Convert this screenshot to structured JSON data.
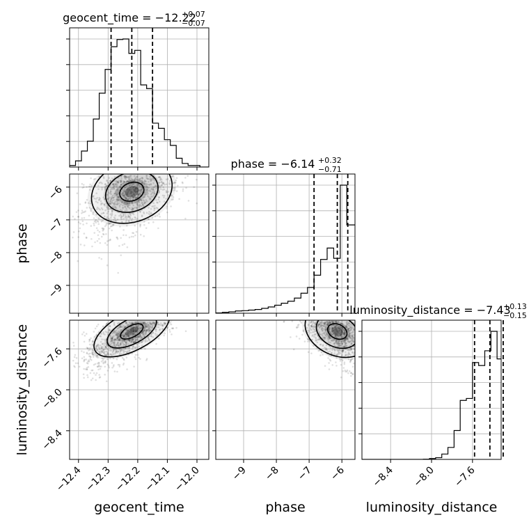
{
  "chart_data": {
    "type": "corner",
    "parameters": [
      "geocent_time",
      "phase",
      "luminosity_distance"
    ],
    "axis_labels": [
      "geocent_time",
      "phase",
      "luminosity_distance"
    ],
    "ranges": {
      "geocent_time": [
        -12.43,
        -11.96
      ],
      "phase": [
        -9.85,
        -5.6
      ],
      "luminosity_distance": [
        -8.68,
        -7.32
      ]
    },
    "ticks": {
      "geocent_time": [
        -12.4,
        -12.3,
        -12.2,
        -12.1,
        -12.0
      ],
      "phase": [
        -9,
        -8,
        -7,
        -6
      ],
      "luminosity_distance": [
        -8.4,
        -8.0,
        -7.6
      ]
    },
    "tick_labels": {
      "geocent_time": [
        "−12.4",
        "−12.3",
        "−12.2",
        "−12.1",
        "−12.0"
      ],
      "phase": [
        "−9",
        "−8",
        "−7",
        "−6"
      ],
      "luminosity_distance": [
        "−8.4",
        "−8.0",
        "−7.6"
      ]
    },
    "titles": [
      {
        "name": "geocent_time",
        "median": "−12.22",
        "plus": "+0.07",
        "minus": "−0.07"
      },
      {
        "name": "phase",
        "median": "−6.14",
        "plus": "+0.32",
        "minus": "−0.71"
      },
      {
        "name": "luminosity_distance",
        "median": "−7.43",
        "plus": "+0.13",
        "minus": "−0.15"
      }
    ],
    "quantiles": {
      "geocent_time": [
        -12.29,
        -12.22,
        -12.15
      ],
      "phase": [
        -6.85,
        -6.14,
        -5.82
      ],
      "luminosity_distance": [
        -7.58,
        -7.43,
        -7.3
      ]
    },
    "histograms": {
      "geocent_time": {
        "edges": [
          -12.43,
          -12.41,
          -12.39,
          -12.37,
          -12.35,
          -12.33,
          -12.31,
          -12.29,
          -12.27,
          -12.25,
          -12.23,
          -12.21,
          -12.19,
          -12.17,
          -12.15,
          -12.13,
          -12.11,
          -12.09,
          -12.07,
          -12.05,
          -12.03,
          -12.01,
          -11.99,
          -11.96
        ],
        "counts": [
          3,
          12,
          31,
          50,
          93,
          143,
          189,
          233,
          247,
          248,
          220,
          226,
          159,
          152,
          85,
          75,
          53,
          42,
          17,
          7,
          3,
          3,
          0
        ]
      },
      "phase": {
        "edges": [
          -9.85,
          -9.65,
          -9.45,
          -9.25,
          -9.05,
          -8.85,
          -8.65,
          -8.45,
          -8.25,
          -8.05,
          -7.85,
          -7.65,
          -7.45,
          -7.25,
          -7.05,
          -6.85,
          -6.65,
          -6.45,
          -6.25,
          -6.05,
          -5.85,
          -5.6
        ],
        "counts": [
          1,
          3,
          5,
          8,
          9,
          11,
          13,
          17,
          22,
          28,
          35,
          42,
          53,
          70,
          90,
          133,
          188,
          228,
          192,
          448,
          309
        ]
      },
      "luminosity_distance": {
        "edges": [
          -8.68,
          -8.62,
          -8.56,
          -8.5,
          -8.44,
          -8.38,
          -8.32,
          -8.26,
          -8.2,
          -8.14,
          -8.08,
          -8.02,
          -7.96,
          -7.9,
          -7.84,
          -7.78,
          -7.72,
          -7.66,
          -7.6,
          -7.54,
          -7.48,
          -7.42,
          -7.36,
          -7.32
        ],
        "counts": [
          0,
          0,
          0,
          0,
          0,
          0,
          0,
          0,
          0,
          0,
          1,
          4,
          8,
          25,
          56,
          135,
          276,
          285,
          453,
          439,
          508,
          599,
          470
        ]
      }
    },
    "scatter_extents": {
      "geocent_time_vs_phase": {
        "x": [
          -12.42,
          -12.0
        ],
        "y": [
          -9.6,
          -5.65
        ]
      },
      "geocent_time_vs_luminosity_distance": {
        "x": [
          -12.42,
          -12.03
        ],
        "y": [
          -8.55,
          -7.34
        ]
      },
      "phase_vs_luminosity_distance": {
        "x": [
          -9.8,
          -5.6
        ],
        "y": [
          -8.45,
          -7.33
        ]
      }
    }
  }
}
